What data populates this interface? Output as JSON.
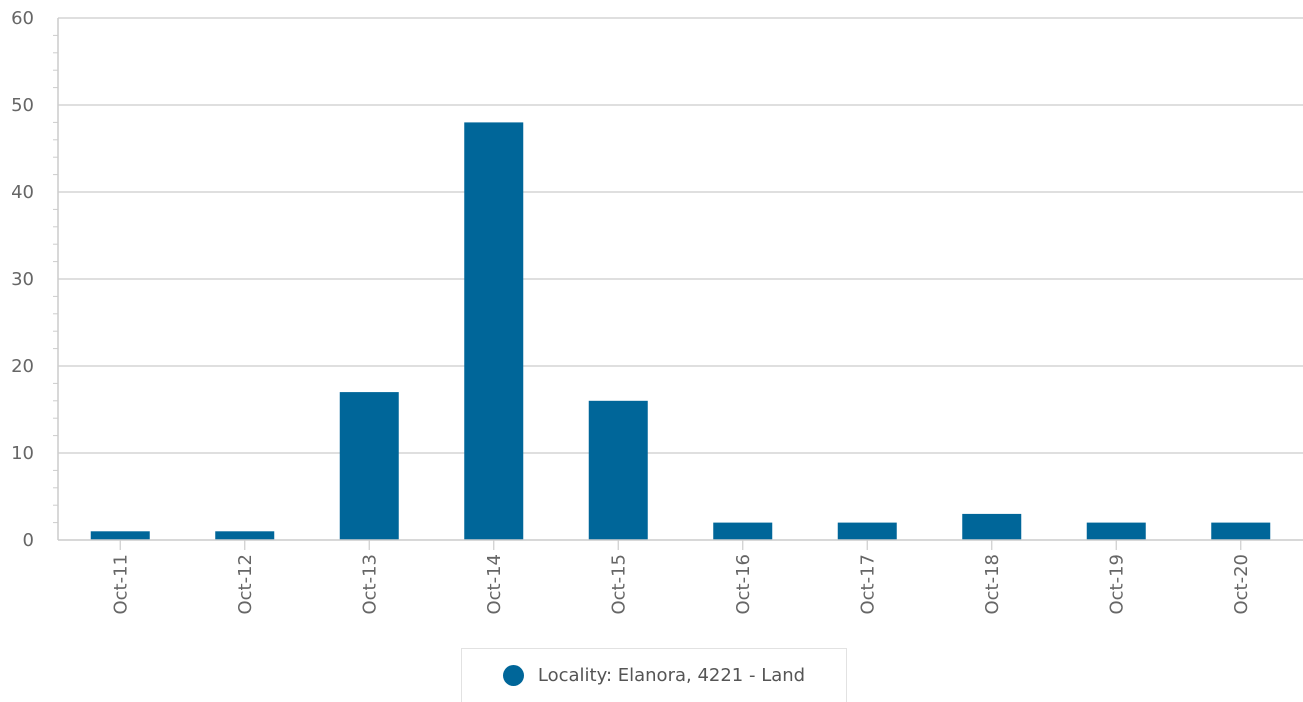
{
  "chart_data": {
    "type": "bar",
    "categories": [
      "Oct-11",
      "Oct-12",
      "Oct-13",
      "Oct-14",
      "Oct-15",
      "Oct-16",
      "Oct-17",
      "Oct-18",
      "Oct-19",
      "Oct-20"
    ],
    "series": [
      {
        "name": "Locality: Elanora, 4221 - Land",
        "values": [
          1,
          1,
          17,
          48,
          16,
          2,
          2,
          3,
          2,
          2
        ]
      }
    ],
    "ylim": [
      0,
      60
    ],
    "yticks": [
      0,
      10,
      20,
      30,
      40,
      50,
      60
    ],
    "grid": true,
    "legend_position": "bottom-center",
    "x_tick_rotation": "vertical",
    "bar_color": "#006699",
    "grid_color": "#cccccc",
    "axis_text_color": "#666666"
  },
  "legend": {
    "label": "Locality: Elanora, 4221 - Land"
  }
}
